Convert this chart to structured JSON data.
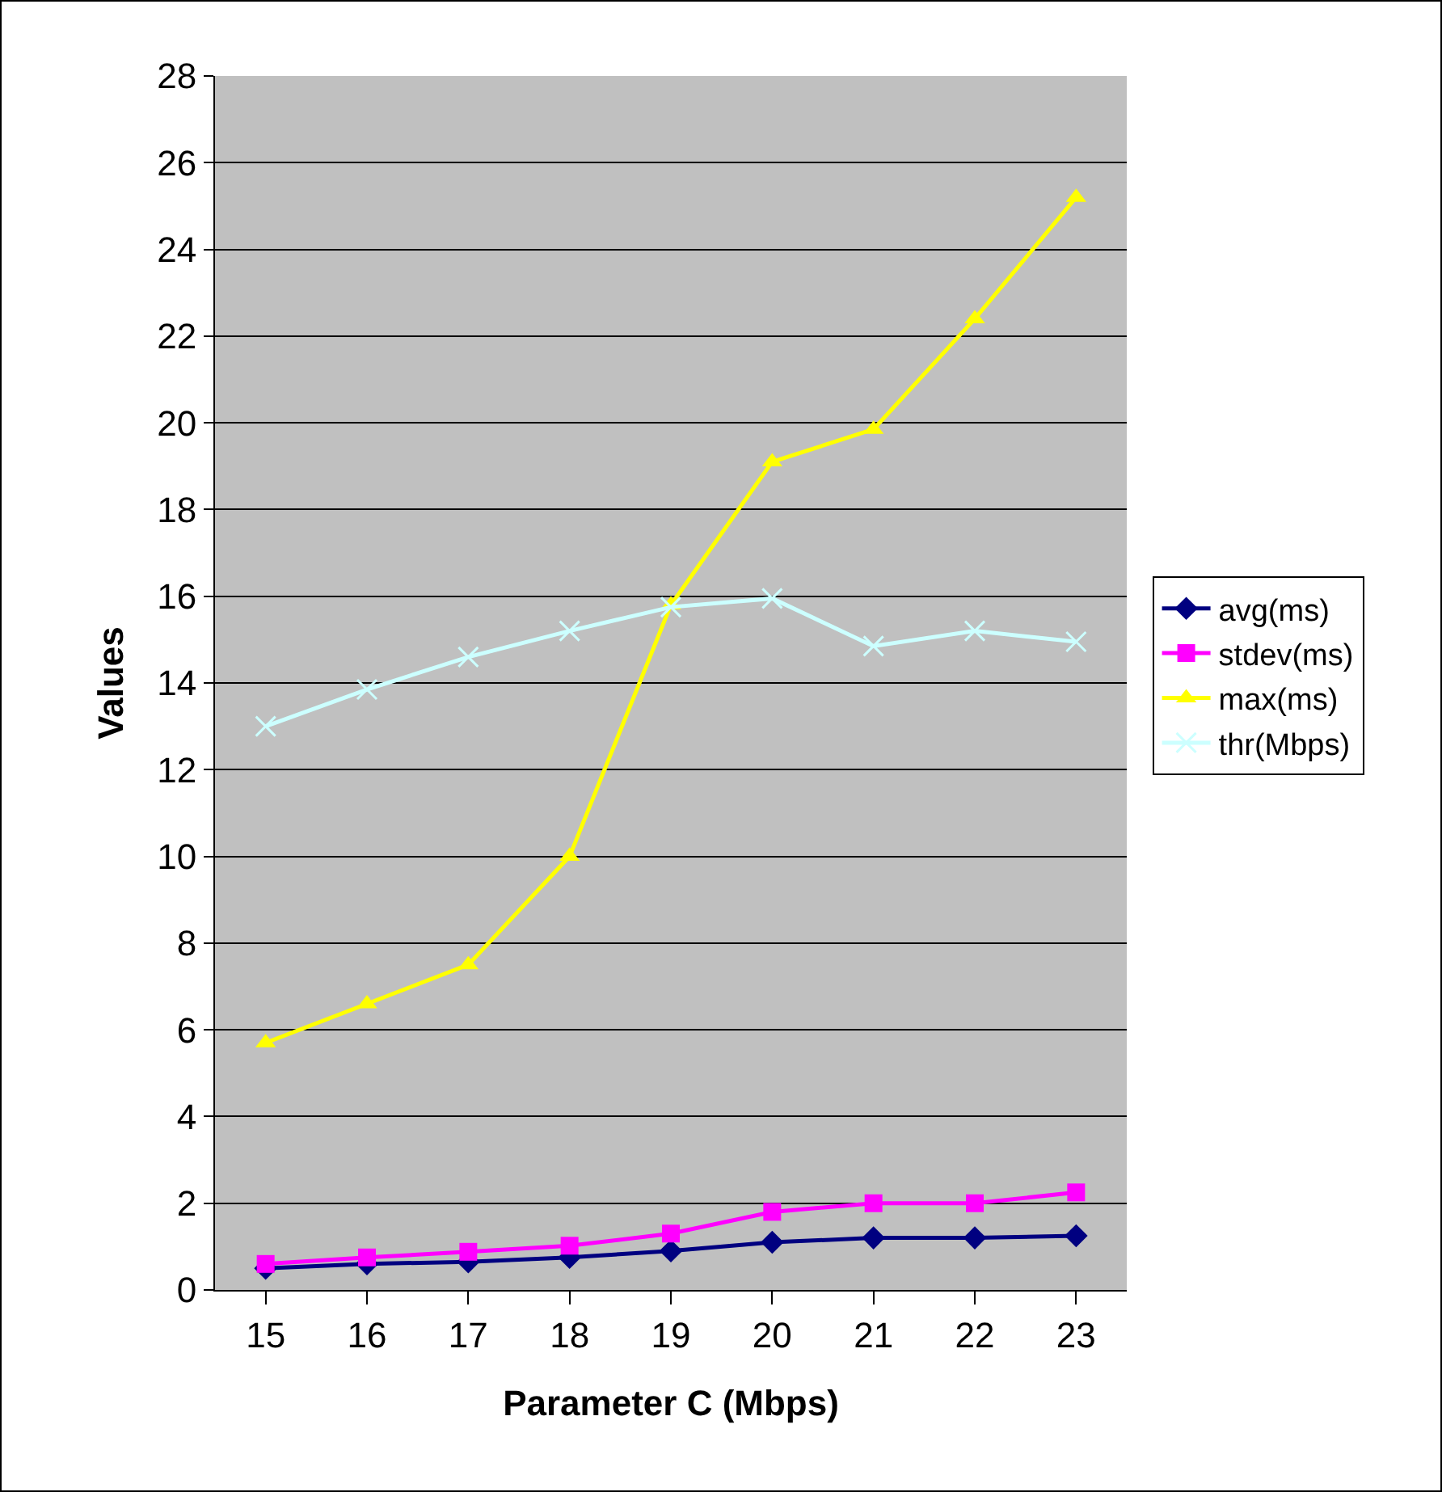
{
  "chart_data": {
    "type": "line",
    "xlabel": "Parameter C (Mbps)",
    "ylabel": "Values",
    "categories": [
      "15",
      "16",
      "17",
      "18",
      "19",
      "20",
      "21",
      "22",
      "23"
    ],
    "series": [
      {
        "name": "avg(ms)",
        "color": "#000080",
        "marker": "diamond",
        "values": [
          0.5,
          0.6,
          0.65,
          0.75,
          0.9,
          1.1,
          1.2,
          1.2,
          1.25
        ]
      },
      {
        "name": "stdev(ms)",
        "color": "#ff00ff",
        "marker": "square",
        "values": [
          0.6,
          0.75,
          0.88,
          1.02,
          1.3,
          1.8,
          2.0,
          2.0,
          2.25
        ]
      },
      {
        "name": "max(ms)",
        "color": "#ffff00",
        "marker": "triangle",
        "values": [
          5.7,
          6.6,
          7.5,
          10.0,
          15.8,
          19.1,
          19.85,
          22.4,
          25.2
        ]
      },
      {
        "name": "thr(Mbps)",
        "color": "#ccffff",
        "marker": "cross",
        "values": [
          13.0,
          13.85,
          14.6,
          15.2,
          15.75,
          15.95,
          14.85,
          15.2,
          14.95
        ]
      }
    ],
    "ylim": [
      0,
      28
    ],
    "yticks": [
      0,
      2,
      4,
      6,
      8,
      10,
      12,
      14,
      16,
      18,
      20,
      22,
      24,
      26,
      28
    ],
    "grid": "y",
    "legend": "right",
    "line_style": "solid"
  }
}
